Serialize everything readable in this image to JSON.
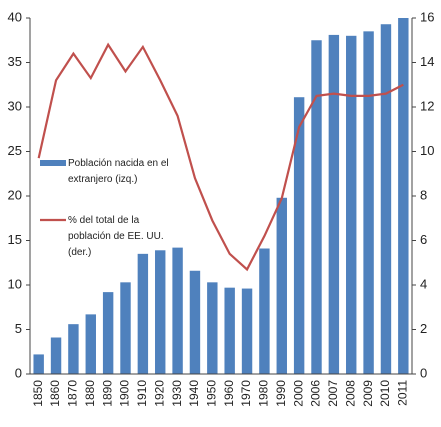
{
  "chart_data": {
    "type": "bar-line",
    "categories": [
      "1850",
      "1860",
      "1870",
      "1880",
      "1890",
      "1900",
      "1910",
      "1920",
      "1930",
      "1940",
      "1950",
      "1960",
      "1970",
      "1980",
      "1990",
      "2000",
      "2006",
      "2007",
      "2008",
      "2009",
      "2010",
      "2011"
    ],
    "series": [
      {
        "name": "Población nacida en el extranjero (izq.)",
        "type": "bar",
        "color": "#4f81bd",
        "axis": "y",
        "values": [
          2.2,
          4.1,
          5.6,
          6.7,
          9.2,
          10.3,
          13.5,
          13.9,
          14.2,
          11.6,
          10.3,
          9.7,
          9.6,
          14.1,
          19.8,
          31.1,
          37.5,
          38.1,
          38.0,
          38.5,
          39.3,
          40.0
        ]
      },
      {
        "name": "% del total de la población de EE. UU. (der.)",
        "type": "line",
        "color": "#c0504d",
        "axis": "y2",
        "values": [
          9.7,
          13.2,
          14.4,
          13.3,
          14.8,
          13.6,
          14.7,
          13.2,
          11.6,
          8.8,
          6.9,
          5.4,
          4.7,
          6.2,
          7.9,
          11.1,
          12.5,
          12.6,
          12.5,
          12.5,
          12.6,
          13.0
        ]
      }
    ],
    "ylim": [
      0,
      40
    ],
    "yticks": [
      0,
      5,
      10,
      15,
      20,
      25,
      30,
      35,
      40
    ],
    "y2lim": [
      0,
      16
    ],
    "y2ticks": [
      0,
      2,
      4,
      6,
      8,
      10,
      12,
      14,
      16
    ],
    "legend": "left"
  }
}
